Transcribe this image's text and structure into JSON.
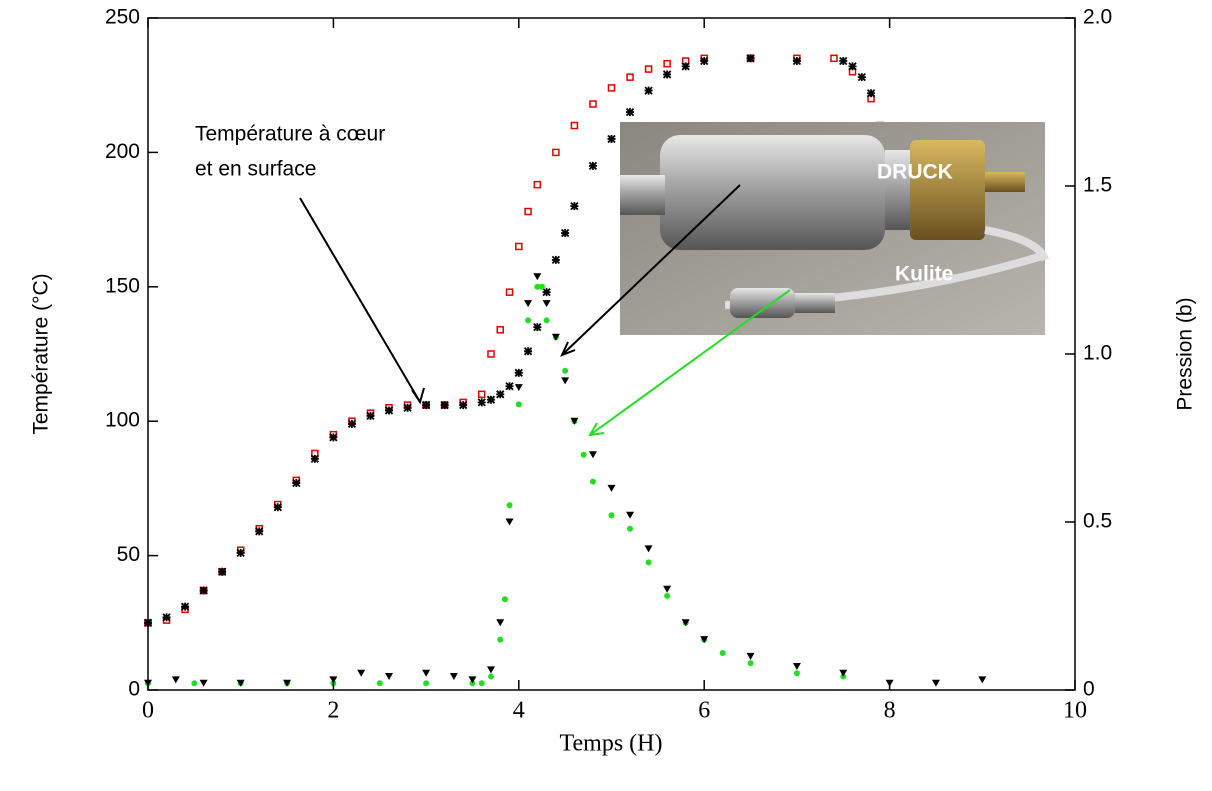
{
  "chart_data": {
    "type": "scatter",
    "xlabel": "Temps (H)",
    "ylabel": "Température (°C)",
    "y2label": "Pression (b)",
    "xlim": [
      0,
      10
    ],
    "xticks": [
      0,
      2,
      4,
      6,
      8,
      10
    ],
    "ylim": [
      0,
      250
    ],
    "yticks": [
      0,
      50,
      100,
      150,
      200,
      250
    ],
    "y2lim": [
      0,
      2
    ],
    "y2ticks": [
      0,
      0.5,
      {
        "value": 1,
        "label": "1.0"
      },
      1.5,
      {
        "value": 2,
        "label": "2.0"
      }
    ],
    "series": [
      {
        "color": "#e00000",
        "marker": "square",
        "x": [
          0,
          0.2,
          0.4,
          0.6,
          0.8,
          1.0,
          1.2,
          1.4,
          1.6,
          1.8,
          2.0,
          2.2,
          2.4,
          2.6,
          2.8,
          3.0,
          3.2,
          3.4,
          3.6,
          3.7,
          3.8,
          3.9,
          4.0,
          4.1,
          4.2,
          4.4,
          4.6,
          4.8,
          5.0,
          5.2,
          5.4,
          5.6,
          5.8,
          6.0,
          6.5,
          7.0,
          7.4,
          7.6,
          7.8,
          7.9
        ],
        "values": [
          25,
          26,
          30,
          37,
          44,
          52,
          60,
          69,
          78,
          88,
          95,
          100,
          103,
          105,
          106,
          106,
          106,
          107,
          110,
          125,
          134,
          148,
          165,
          178,
          188,
          200,
          210,
          218,
          224,
          228,
          231,
          233,
          234,
          235,
          235,
          235,
          235,
          230,
          220,
          210
        ]
      },
      {
        "color": "#000000",
        "marker": "star",
        "x": [
          0,
          0.2,
          0.4,
          0.6,
          0.8,
          1.0,
          1.2,
          1.4,
          1.6,
          1.8,
          2.0,
          2.2,
          2.4,
          2.6,
          2.8,
          3.0,
          3.2,
          3.4,
          3.6,
          3.7,
          3.8,
          3.9,
          4.0,
          4.1,
          4.2,
          4.3,
          4.4,
          4.5,
          4.6,
          4.8,
          5.0,
          5.2,
          5.4,
          5.6,
          5.8,
          6.0,
          6.5,
          7.0,
          7.5,
          7.6,
          7.7,
          7.8
        ],
        "values": [
          25,
          27,
          31,
          37,
          44,
          51,
          59,
          68,
          77,
          86,
          94,
          99,
          102,
          104,
          105,
          106,
          106,
          106,
          107,
          108,
          110,
          113,
          118,
          126,
          135,
          148,
          160,
          170,
          180,
          195,
          205,
          215,
          223,
          229,
          232,
          234,
          235,
          234,
          234,
          232,
          228,
          222
        ]
      },
      {
        "color": "#22dd22",
        "marker": "dot",
        "axis": "y2",
        "x": [
          0,
          0.5,
          1.0,
          1.5,
          2.0,
          2.5,
          3.0,
          3.5,
          3.6,
          3.7,
          3.8,
          3.85,
          3.9,
          4.0,
          4.1,
          4.2,
          4.25,
          4.3,
          4.4,
          4.5,
          4.6,
          4.7,
          4.8,
          5.0,
          5.2,
          5.4,
          5.6,
          5.8,
          6.0,
          6.2,
          6.5,
          7.0,
          7.5
        ],
        "values": [
          0.02,
          0.02,
          0.02,
          0.02,
          0.02,
          0.02,
          0.02,
          0.02,
          0.02,
          0.04,
          0.15,
          0.27,
          0.55,
          0.85,
          1.1,
          1.2,
          1.2,
          1.1,
          1.05,
          0.95,
          0.8,
          0.7,
          0.62,
          0.52,
          0.48,
          0.38,
          0.28,
          0.2,
          0.15,
          0.11,
          0.08,
          0.05,
          0.04
        ]
      },
      {
        "color": "#000000",
        "marker": "triangle",
        "axis": "y2",
        "x": [
          0,
          0.3,
          0.6,
          1.0,
          1.5,
          2.0,
          2.3,
          2.6,
          3.0,
          3.3,
          3.5,
          3.7,
          3.8,
          3.9,
          4.0,
          4.1,
          4.2,
          4.3,
          4.4,
          4.5,
          4.6,
          4.8,
          5.0,
          5.2,
          5.4,
          5.6,
          5.8,
          6.0,
          6.5,
          7.0,
          7.5,
          8.0,
          8.5,
          9.0
        ],
        "values": [
          0.02,
          0.03,
          0.02,
          0.02,
          0.02,
          0.03,
          0.05,
          0.04,
          0.05,
          0.04,
          0.03,
          0.06,
          0.2,
          0.5,
          0.9,
          1.15,
          1.23,
          1.15,
          1.05,
          0.92,
          0.8,
          0.7,
          0.6,
          0.52,
          0.42,
          0.3,
          0.2,
          0.15,
          0.1,
          0.07,
          0.05,
          0.02,
          0.02,
          0.03
        ]
      }
    ],
    "annotations": [
      "Température à cœur",
      "et en surface",
      "DRUCK",
      "Kulite"
    ]
  }
}
